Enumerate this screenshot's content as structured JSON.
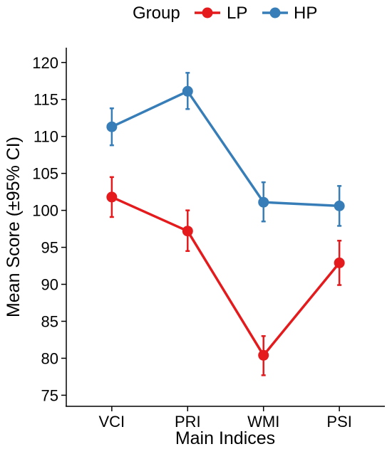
{
  "chart_data": {
    "type": "line",
    "title": "",
    "xlabel": "Main Indices",
    "ylabel": "Mean Score (±95% CI)",
    "categories": [
      "VCI",
      "PRI",
      "WMI",
      "PSI"
    ],
    "ylim": [
      73.5,
      122
    ],
    "yticks": [
      75,
      80,
      85,
      90,
      95,
      100,
      105,
      110,
      115,
      120
    ],
    "grid": false,
    "legend": {
      "title": "Group",
      "position": "top"
    },
    "series": [
      {
        "name": "LP",
        "color": "#E41A1C",
        "values": [
          101.8,
          97.2,
          80.4,
          92.9
        ],
        "ci_lower": [
          99.1,
          94.5,
          77.7,
          89.9
        ],
        "ci_upper": [
          104.5,
          100.0,
          83.0,
          95.9
        ]
      },
      {
        "name": "HP",
        "color": "#377EB8",
        "values": [
          111.3,
          116.1,
          101.1,
          100.6
        ],
        "ci_lower": [
          108.8,
          113.7,
          98.5,
          97.9
        ],
        "ci_upper": [
          113.8,
          118.6,
          103.8,
          103.3
        ]
      }
    ]
  }
}
